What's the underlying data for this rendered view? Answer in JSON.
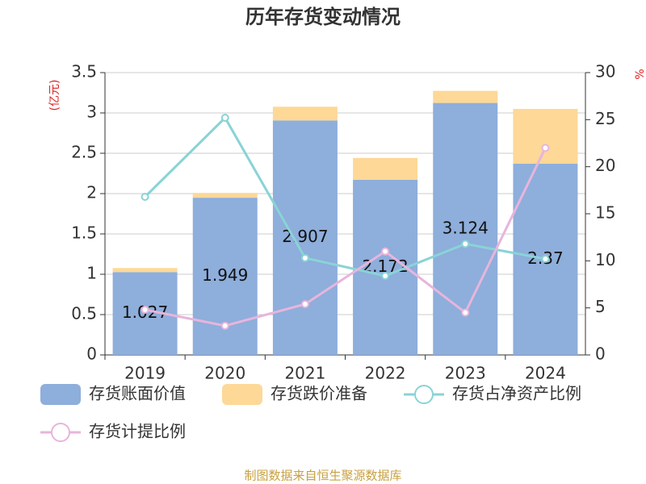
{
  "chart_data": {
    "type": "bar-line",
    "title": "历年存货变动情况",
    "ylabel": "(亿元)",
    "y2label": "%",
    "categories": [
      "2019",
      "2020",
      "2021",
      "2022",
      "2023",
      "2024"
    ],
    "series": [
      {
        "name": "存货账面价值",
        "color": "#8eaedb",
        "kind": "bar",
        "values": [
          1.027,
          1.949,
          2.907,
          2.172,
          3.124,
          2.37
        ],
        "show_labels": true
      },
      {
        "name": "存货跌价准备",
        "color": "#fdd897",
        "kind": "bar",
        "values": [
          0.05,
          0.06,
          0.17,
          0.27,
          0.15,
          0.68
        ]
      },
      {
        "name": "存货占净资产比例",
        "color": "#8ad3d6",
        "kind": "line",
        "axis": "y2",
        "values": [
          16.8,
          25.2,
          10.3,
          8.4,
          11.8,
          10.2
        ]
      },
      {
        "name": "存货计提比例",
        "color": "#e7b5dc",
        "kind": "line",
        "axis": "y2",
        "values": [
          4.8,
          3.1,
          5.4,
          11,
          4.5,
          22
        ]
      }
    ],
    "ylim": [
      0,
      3.5
    ],
    "yticks": [
      0,
      0.5,
      1,
      1.5,
      2,
      2.5,
      3,
      3.5
    ],
    "y2lim": [
      0,
      30
    ],
    "y2ticks": [
      0,
      5,
      10,
      15,
      20,
      25,
      30
    ],
    "source": "制图数据来自恒生聚源数据库"
  }
}
